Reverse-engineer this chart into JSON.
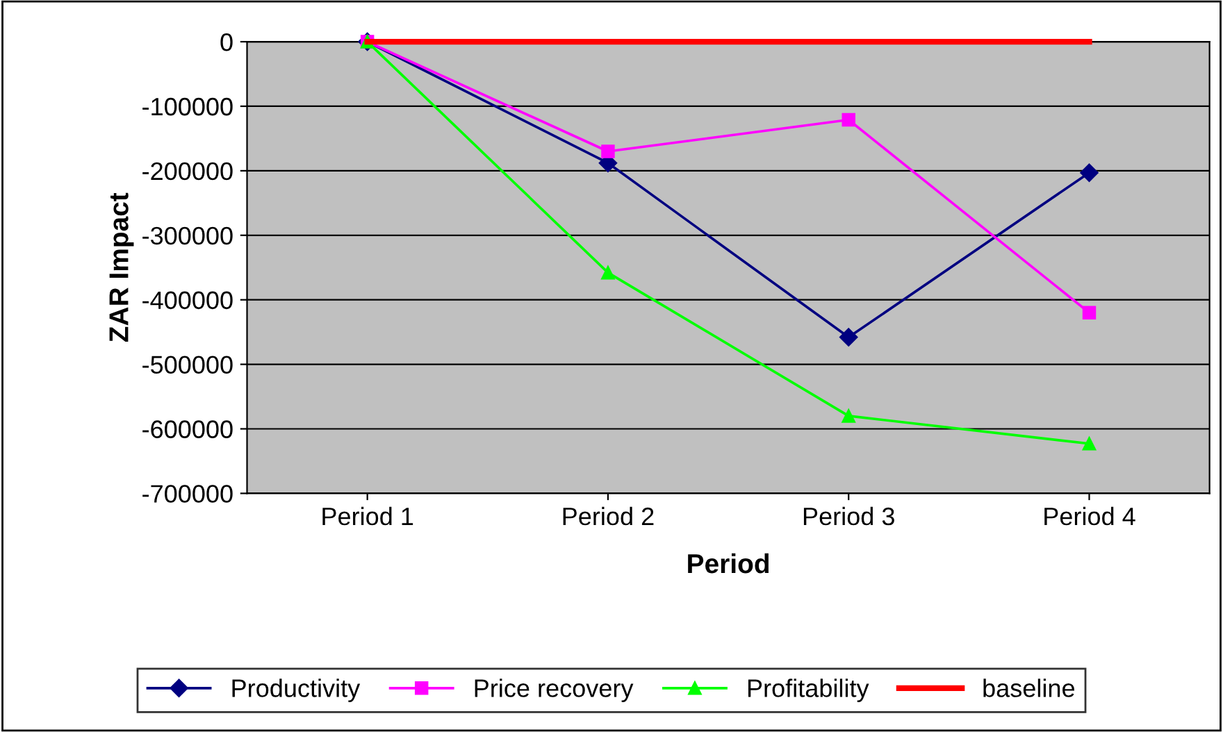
{
  "chart_data": {
    "type": "line",
    "xlabel": "Period",
    "ylabel": "ZAR Impact",
    "categories": [
      "Period 1",
      "Period 2",
      "Period 3",
      "Period 4"
    ],
    "series": [
      {
        "name": "Productivity",
        "color": "#000080",
        "marker": "diamond",
        "values": [
          0,
          -188000,
          -458000,
          -203000
        ]
      },
      {
        "name": "Price recovery",
        "color": "#ff00ff",
        "marker": "square",
        "values": [
          0,
          -170000,
          -121000,
          -420000
        ]
      },
      {
        "name": "Profitability",
        "color": "#00ff00",
        "marker": "triangle",
        "values": [
          0,
          -358000,
          -580000,
          -623000
        ]
      },
      {
        "name": "baseline",
        "color": "#ff0000",
        "marker": "none",
        "values": [
          0,
          0,
          0,
          0
        ]
      }
    ],
    "ylim": [
      -700000,
      0
    ],
    "yticks": [
      -700000,
      -600000,
      -500000,
      -400000,
      -300000,
      -200000,
      -100000,
      0
    ],
    "grid": "y",
    "legend": "bottom",
    "line_style": "solid"
  }
}
